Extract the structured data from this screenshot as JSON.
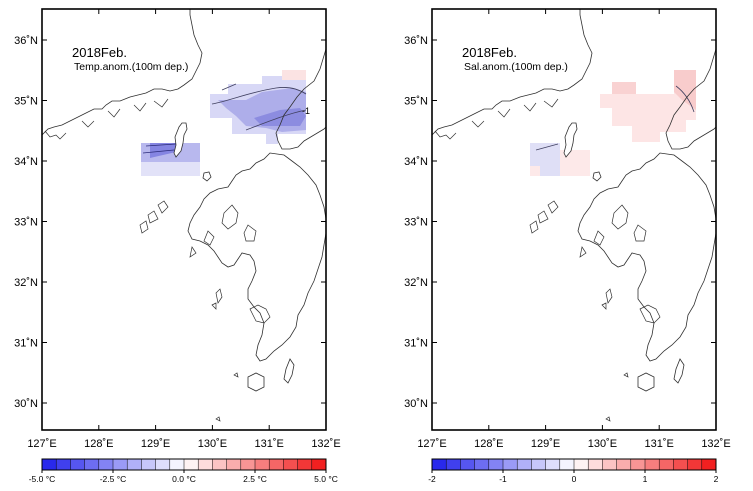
{
  "colors": {
    "frame": "#000000",
    "coast": "#303030",
    "cold_strong": "#2a2ad8",
    "cold_mid": "#8f8fe6",
    "cold_light": "#d4d4f6",
    "warm_light": "#fbe0e0",
    "warm_mid": "#f6bcbc"
  },
  "left_map": {
    "title": "2018Feb.",
    "subtitle": "Temp.anom.(100m dep.)",
    "contour_label": "-1",
    "lat_labels": [
      "36˚N",
      "35˚N",
      "34˚N",
      "33˚N",
      "32˚N",
      "31˚N",
      "30˚N"
    ],
    "lon_labels": [
      "127˚E",
      "128˚E",
      "129˚E",
      "130˚E",
      "131˚E",
      "132˚E"
    ],
    "colorbar": {
      "min": -5.0,
      "max": 5.0,
      "step": 0.5,
      "labels": [
        "-5.0 °C",
        "-2.5 °C",
        "0.0 °C",
        "2.5 °C",
        "5.0 °C"
      ]
    }
  },
  "right_map": {
    "title": "2018Feb.",
    "subtitle": "Sal.anom.(100m dep.)",
    "lat_labels": [
      "36˚N",
      "35˚N",
      "34˚N",
      "33˚N",
      "32˚N",
      "31˚N",
      "30˚N"
    ],
    "lon_labels": [
      "127˚E",
      "128˚E",
      "129˚E",
      "130˚E",
      "131˚E",
      "132˚E"
    ],
    "colorbar": {
      "min": -2,
      "max": 2,
      "step": 0.2,
      "labels": [
        "-2",
        "-1",
        "0",
        "1",
        "2"
      ]
    }
  }
}
